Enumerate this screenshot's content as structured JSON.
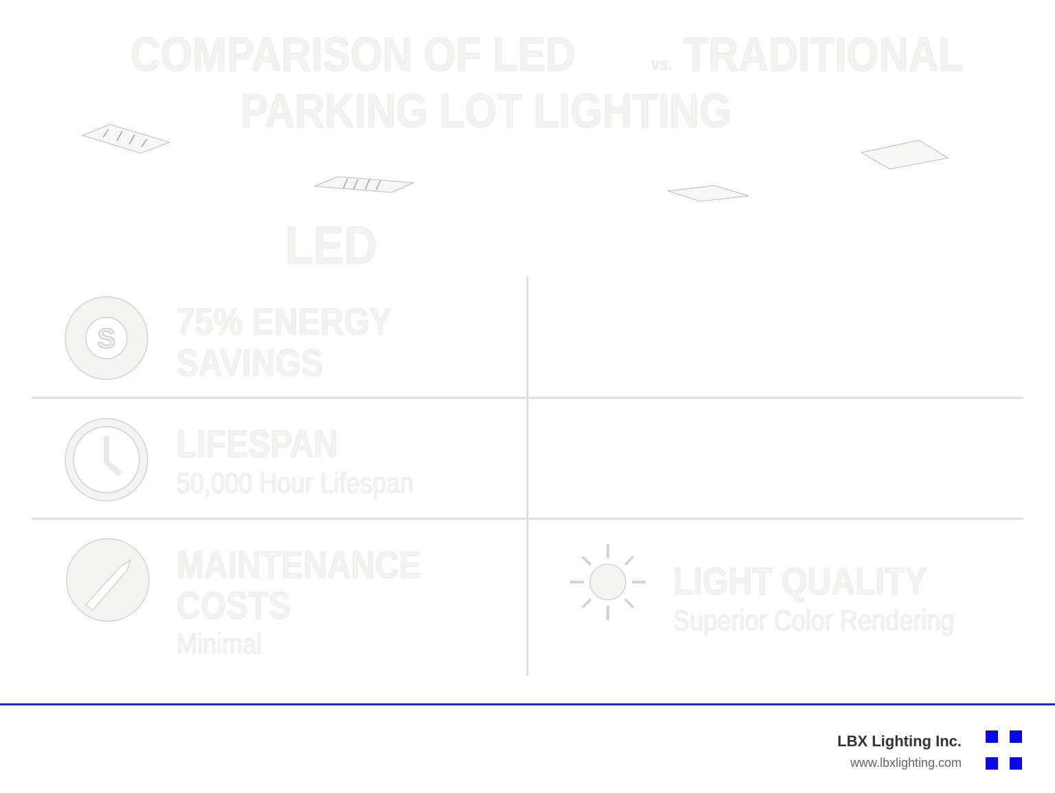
{
  "header": {
    "title_a": "COMPARISON OF LED",
    "title_vs": "vs.",
    "title_b": "TRADITIONAL",
    "title_line2": "PARKING LOT LIGHTING"
  },
  "column_label": "LED",
  "features": [
    {
      "heading": [
        "75% ENERGY",
        "SAVINGS"
      ]
    },
    {
      "heading": [
        "LIFESPAN"
      ],
      "detail": "50,000 Hour Lifespan"
    },
    {
      "heading": [
        "MAINTENANCE",
        "COSTS"
      ],
      "detail": "Minimal"
    },
    {
      "heading": [
        "LIGHT QUALITY"
      ],
      "detail": "Superior Color Rendering"
    }
  ],
  "footer": {
    "company": "LBX Lighting Inc.",
    "website": "www.lbxlighting.com"
  }
}
